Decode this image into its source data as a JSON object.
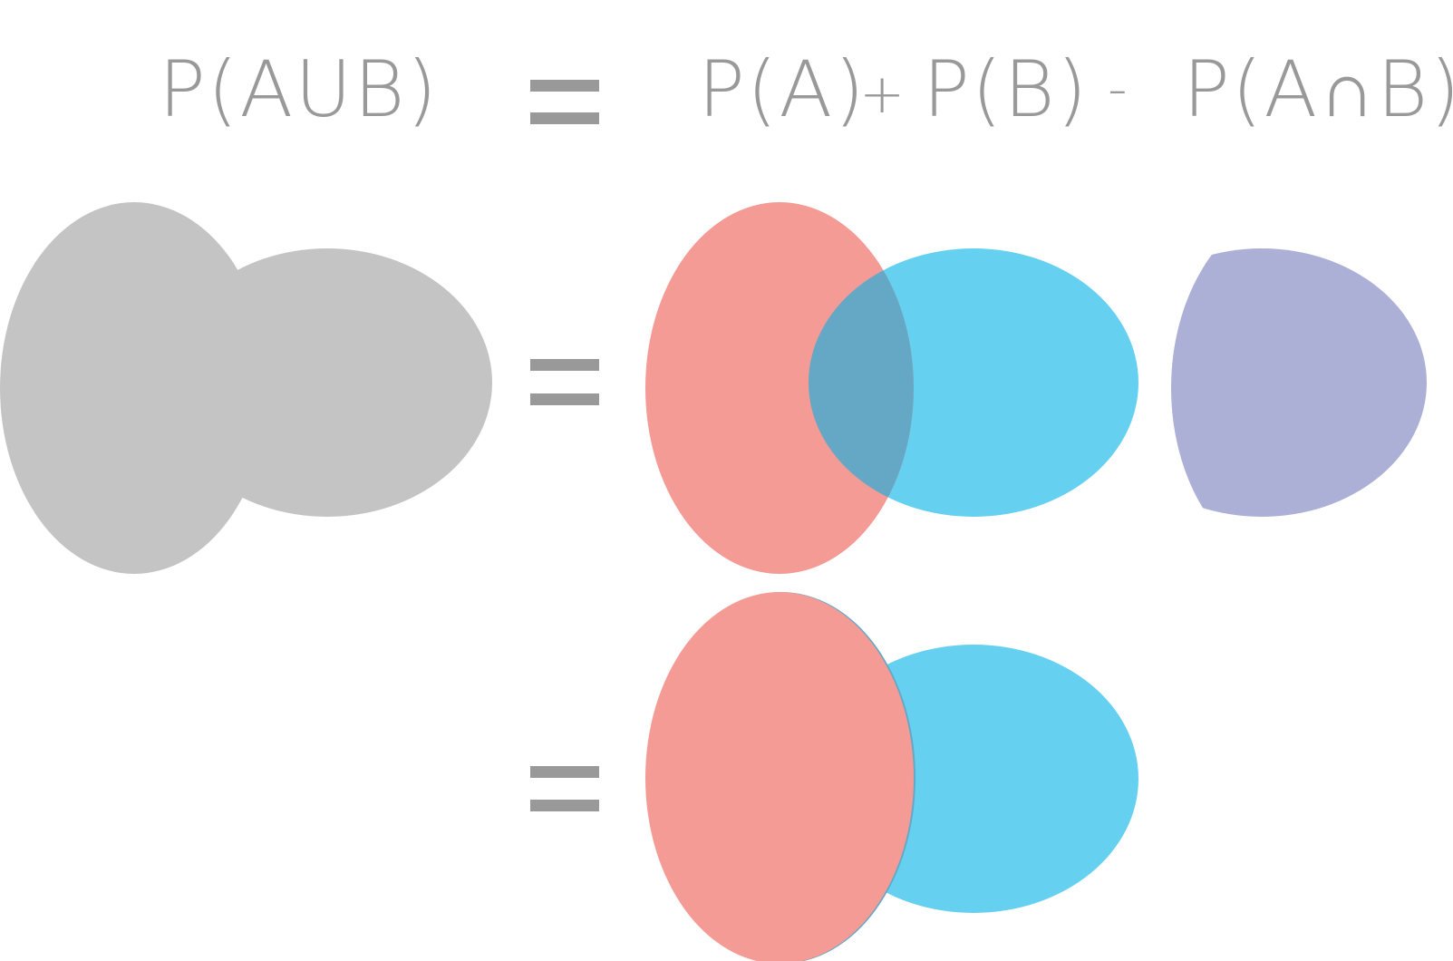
{
  "formula": {
    "lhs": "P(AUB)",
    "term_a": "P(A)",
    "plus": "+",
    "term_b": "P(B)",
    "minus": "-",
    "term_ab": "P(A∩B)"
  },
  "colors": {
    "text": "#999999",
    "equals": "#999999",
    "union_gray": "#c4c4c4",
    "set_a": "#f59b96",
    "set_b": "#66d0f1",
    "overlap": "#64a8c6",
    "intersection": "#adb0d6"
  }
}
